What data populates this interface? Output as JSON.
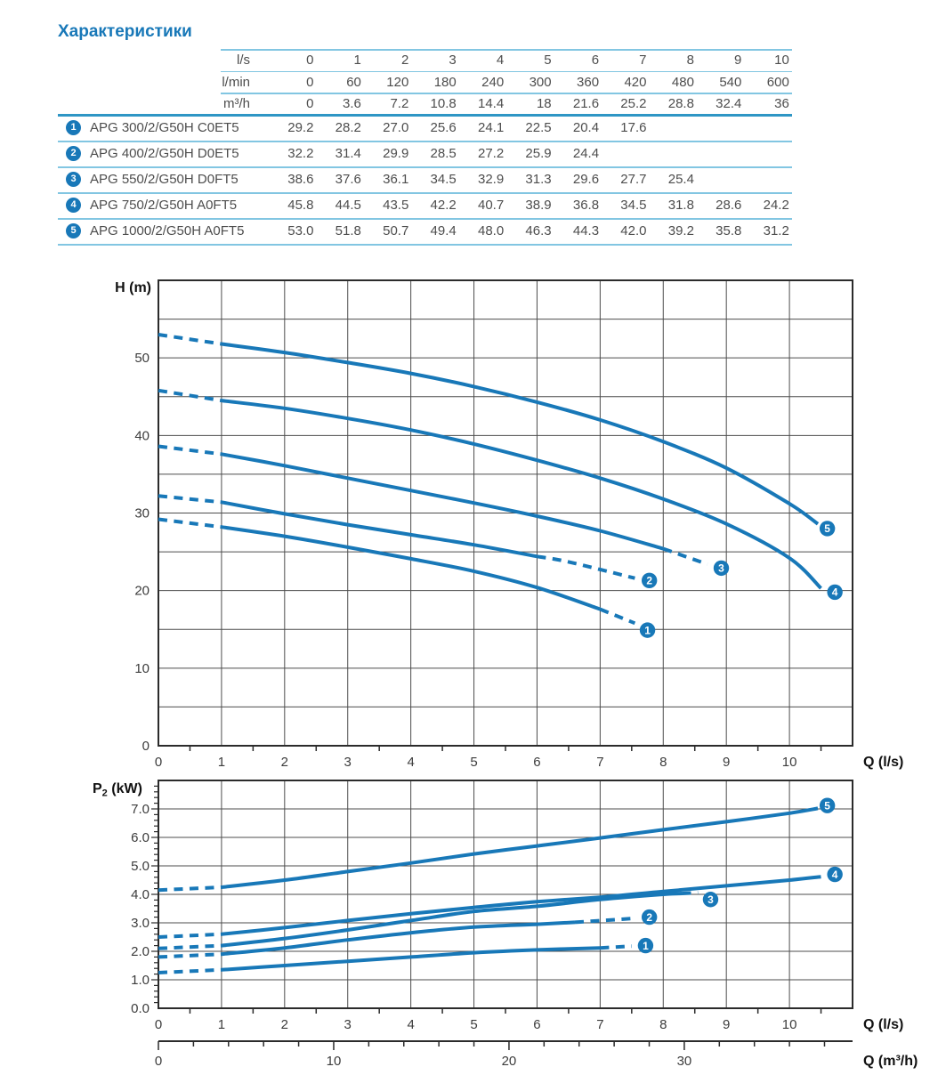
{
  "page_title": "Характеристики",
  "colors": {
    "accent": "#1878b8",
    "curve": "#1878b8",
    "rule_light": "#82c6e2",
    "rule_medium": "#2f96c5",
    "grid": "#4d4d4d",
    "border": "#2b2b2b",
    "tick_text": "#3c3c3c",
    "table_text": "#4d4d4d"
  },
  "table": {
    "header_rows": [
      {
        "unit": "l/s",
        "values": [
          "0",
          "1",
          "2",
          "3",
          "4",
          "5",
          "6",
          "7",
          "8",
          "9",
          "10"
        ]
      },
      {
        "unit": "l/min",
        "values": [
          "0",
          "60",
          "120",
          "180",
          "240",
          "300",
          "360",
          "420",
          "480",
          "540",
          "600"
        ]
      },
      {
        "unit": "m³/h",
        "values": [
          "0",
          "3.6",
          "7.2",
          "10.8",
          "14.4",
          "18",
          "21.6",
          "25.2",
          "28.8",
          "32.4",
          "36"
        ]
      }
    ],
    "pumps": [
      {
        "num": "1",
        "model": "APG 300/2/G50H C0ET5",
        "values": [
          "29.2",
          "28.2",
          "27.0",
          "25.6",
          "24.1",
          "22.5",
          "20.4",
          "17.6"
        ]
      },
      {
        "num": "2",
        "model": "APG 400/2/G50H D0ET5",
        "values": [
          "32.2",
          "31.4",
          "29.9",
          "28.5",
          "27.2",
          "25.9",
          "24.4"
        ]
      },
      {
        "num": "3",
        "model": "APG 550/2/G50H D0FT5",
        "values": [
          "38.6",
          "37.6",
          "36.1",
          "34.5",
          "32.9",
          "31.3",
          "29.6",
          "27.7",
          "25.4"
        ]
      },
      {
        "num": "4",
        "model": "APG 750/2/G50H A0FT5",
        "values": [
          "45.8",
          "44.5",
          "43.5",
          "42.2",
          "40.7",
          "38.9",
          "36.8",
          "34.5",
          "31.8",
          "28.6",
          "24.2"
        ]
      },
      {
        "num": "5",
        "model": "APG 1000/2/G50H A0FT5",
        "values": [
          "53.0",
          "51.8",
          "50.7",
          "49.4",
          "48.0",
          "46.3",
          "44.3",
          "42.0",
          "39.2",
          "35.8",
          "31.2"
        ]
      }
    ]
  },
  "chart_data": [
    {
      "type": "line",
      "id": "head-chart",
      "title": "H (m)",
      "xlabel": "Q (l/s)",
      "ylabel": "H (m)",
      "xlim": [
        0,
        11
      ],
      "ylim": [
        0,
        60
      ],
      "x_grid_step": 1,
      "x_minor_tick_step": 0.5,
      "y_grid_step": 5,
      "x_ticks": [
        {
          "v": 0,
          "t": "0"
        },
        {
          "v": 1,
          "t": "1"
        },
        {
          "v": 2,
          "t": "2"
        },
        {
          "v": 3,
          "t": "3"
        },
        {
          "v": 4,
          "t": "4"
        },
        {
          "v": 5,
          "t": "5"
        },
        {
          "v": 6,
          "t": "6"
        },
        {
          "v": 7,
          "t": "7"
        },
        {
          "v": 8,
          "t": "8"
        },
        {
          "v": 9,
          "t": "9"
        },
        {
          "v": 10,
          "t": "10"
        }
      ],
      "y_ticks": [
        {
          "v": 0,
          "t": "0"
        },
        {
          "v": 10,
          "t": "10"
        },
        {
          "v": 20,
          "t": "20"
        },
        {
          "v": 30,
          "t": "30"
        },
        {
          "v": 40,
          "t": "40"
        },
        {
          "v": 50,
          "t": "50"
        }
      ],
      "grid": true,
      "legend": "numbered circle markers at curve ends",
      "series": [
        {
          "label": "1",
          "x": [
            0,
            1,
            2,
            3,
            4,
            5,
            6,
            7
          ],
          "y": [
            29.2,
            28.2,
            27.0,
            25.6,
            24.1,
            22.5,
            20.4,
            17.6
          ],
          "head_dashed": true,
          "tail": {
            "dash": true,
            "points": [
              [
                7.55,
                15.8
              ]
            ]
          },
          "marker": [
            7.75,
            14.9
          ]
        },
        {
          "label": "2",
          "x": [
            0,
            1,
            2,
            3,
            4,
            5,
            6
          ],
          "y": [
            32.2,
            31.4,
            29.9,
            28.5,
            27.2,
            25.9,
            24.4
          ],
          "head_dashed": true,
          "tail": {
            "dash": true,
            "points": [
              [
                6.5,
                23.7
              ],
              [
                7.55,
                21.6
              ]
            ]
          },
          "marker": [
            7.78,
            21.3
          ]
        },
        {
          "label": "3",
          "x": [
            0,
            1,
            2,
            3,
            4,
            5,
            6,
            7,
            8
          ],
          "y": [
            38.6,
            37.6,
            36.1,
            34.5,
            32.9,
            31.3,
            29.6,
            27.7,
            25.4
          ],
          "head_dashed": true,
          "tail": {
            "dash": true,
            "points": [
              [
                8.7,
                23.4
              ]
            ]
          },
          "marker": [
            8.92,
            22.9
          ]
        },
        {
          "label": "4",
          "x": [
            0,
            1,
            2,
            3,
            4,
            5,
            6,
            7,
            8,
            9,
            10
          ],
          "y": [
            45.8,
            44.5,
            43.5,
            42.2,
            40.7,
            38.9,
            36.8,
            34.5,
            31.8,
            28.6,
            24.2
          ],
          "head_dashed": true,
          "tail": {
            "dash": false,
            "points": [
              [
                10.5,
                20.3
              ]
            ]
          },
          "marker": [
            10.72,
            19.8
          ]
        },
        {
          "label": "5",
          "x": [
            0,
            1,
            2,
            3,
            4,
            5,
            6,
            7,
            8,
            9,
            10
          ],
          "y": [
            53.0,
            51.8,
            50.7,
            49.4,
            48.0,
            46.3,
            44.3,
            42.0,
            39.2,
            35.8,
            31.2
          ],
          "head_dashed": true,
          "tail": {
            "dash": false,
            "points": [
              [
                10.45,
                28.6
              ]
            ]
          },
          "marker": [
            10.6,
            28.0
          ]
        }
      ]
    },
    {
      "type": "line",
      "id": "power-chart",
      "title_main": "P",
      "title_sub": "2",
      "title_unit": " (kW)",
      "xlabel": "Q (l/s)",
      "ylabel": "P2 (kW)",
      "xlim": [
        0,
        11
      ],
      "ylim": [
        0,
        8
      ],
      "x_grid_step": 1,
      "x_minor_tick_step": 0.5,
      "y_grid_step": 1,
      "y_minor_tick_step": 0.2,
      "x_ticks": [
        {
          "v": 0,
          "t": "0"
        },
        {
          "v": 1,
          "t": "1"
        },
        {
          "v": 2,
          "t": "2"
        },
        {
          "v": 3,
          "t": "3"
        },
        {
          "v": 4,
          "t": "4"
        },
        {
          "v": 5,
          "t": "5"
        },
        {
          "v": 6,
          "t": "6"
        },
        {
          "v": 7,
          "t": "7"
        },
        {
          "v": 8,
          "t": "8"
        },
        {
          "v": 9,
          "t": "9"
        },
        {
          "v": 10,
          "t": "10"
        }
      ],
      "y_ticks": [
        {
          "v": 0,
          "t": "0.0"
        },
        {
          "v": 1,
          "t": "1.0"
        },
        {
          "v": 2,
          "t": "2.0"
        },
        {
          "v": 3,
          "t": "3.0"
        },
        {
          "v": 4,
          "t": "4.0"
        },
        {
          "v": 5,
          "t": "5.0"
        },
        {
          "v": 6,
          "t": "6.0"
        },
        {
          "v": 7,
          "t": "7.0"
        }
      ],
      "grid": true,
      "series": [
        {
          "label": "1",
          "x": [
            0,
            1,
            2,
            3,
            4,
            5,
            6,
            7
          ],
          "y": [
            1.25,
            1.35,
            1.5,
            1.65,
            1.8,
            1.95,
            2.05,
            2.12
          ],
          "head_dashed": true,
          "tail": {
            "dash": true,
            "points": [
              [
                7.5,
                2.18
              ]
            ]
          },
          "marker": [
            7.72,
            2.2
          ]
        },
        {
          "label": "2",
          "x": [
            0,
            1,
            2,
            3,
            4,
            5,
            6,
            6.6
          ],
          "y": [
            1.8,
            1.9,
            2.12,
            2.4,
            2.65,
            2.85,
            2.95,
            3.02
          ],
          "head_dashed": true,
          "tail": {
            "dash": true,
            "points": [
              [
                7.5,
                3.15
              ]
            ]
          },
          "marker": [
            7.78,
            3.2
          ]
        },
        {
          "label": "3",
          "x": [
            0,
            1,
            2,
            3,
            4,
            5,
            6,
            7,
            8,
            8.3
          ],
          "y": [
            2.1,
            2.2,
            2.45,
            2.75,
            3.08,
            3.4,
            3.58,
            3.82,
            4.0,
            4.03
          ],
          "head_dashed": true,
          "tail": {
            "dash": true,
            "points": [
              [
                8.55,
                4.06
              ]
            ]
          },
          "marker": [
            8.75,
            3.82
          ]
        },
        {
          "label": "4",
          "x": [
            0,
            1,
            2,
            3,
            4,
            5,
            6,
            7,
            8,
            9,
            10
          ],
          "y": [
            2.5,
            2.6,
            2.83,
            3.08,
            3.32,
            3.54,
            3.74,
            3.9,
            4.1,
            4.3,
            4.5
          ],
          "head_dashed": true,
          "tail": {
            "dash": false,
            "points": [
              [
                10.5,
                4.62
              ]
            ]
          },
          "marker": [
            10.72,
            4.7
          ]
        },
        {
          "label": "5",
          "x": [
            0,
            1,
            2,
            3,
            4,
            5,
            6,
            7,
            8,
            9,
            10
          ],
          "y": [
            4.15,
            4.25,
            4.5,
            4.8,
            5.1,
            5.42,
            5.7,
            5.98,
            6.27,
            6.55,
            6.85
          ],
          "head_dashed": true,
          "tail": {
            "dash": false,
            "points": [
              [
                10.45,
                7.02
              ]
            ]
          },
          "marker": [
            10.6,
            7.12
          ]
        }
      ],
      "x2_axis": {
        "label": "Q (m³/h)",
        "ticks": [
          {
            "v": 0,
            "t": "0"
          },
          {
            "v": 10,
            "t": "10"
          },
          {
            "v": 20,
            "t": "20"
          },
          {
            "v": 30,
            "t": "30"
          }
        ],
        "minor_step": 2,
        "minor_max": 38,
        "ls_per_m3h": 0.2777778
      }
    }
  ]
}
